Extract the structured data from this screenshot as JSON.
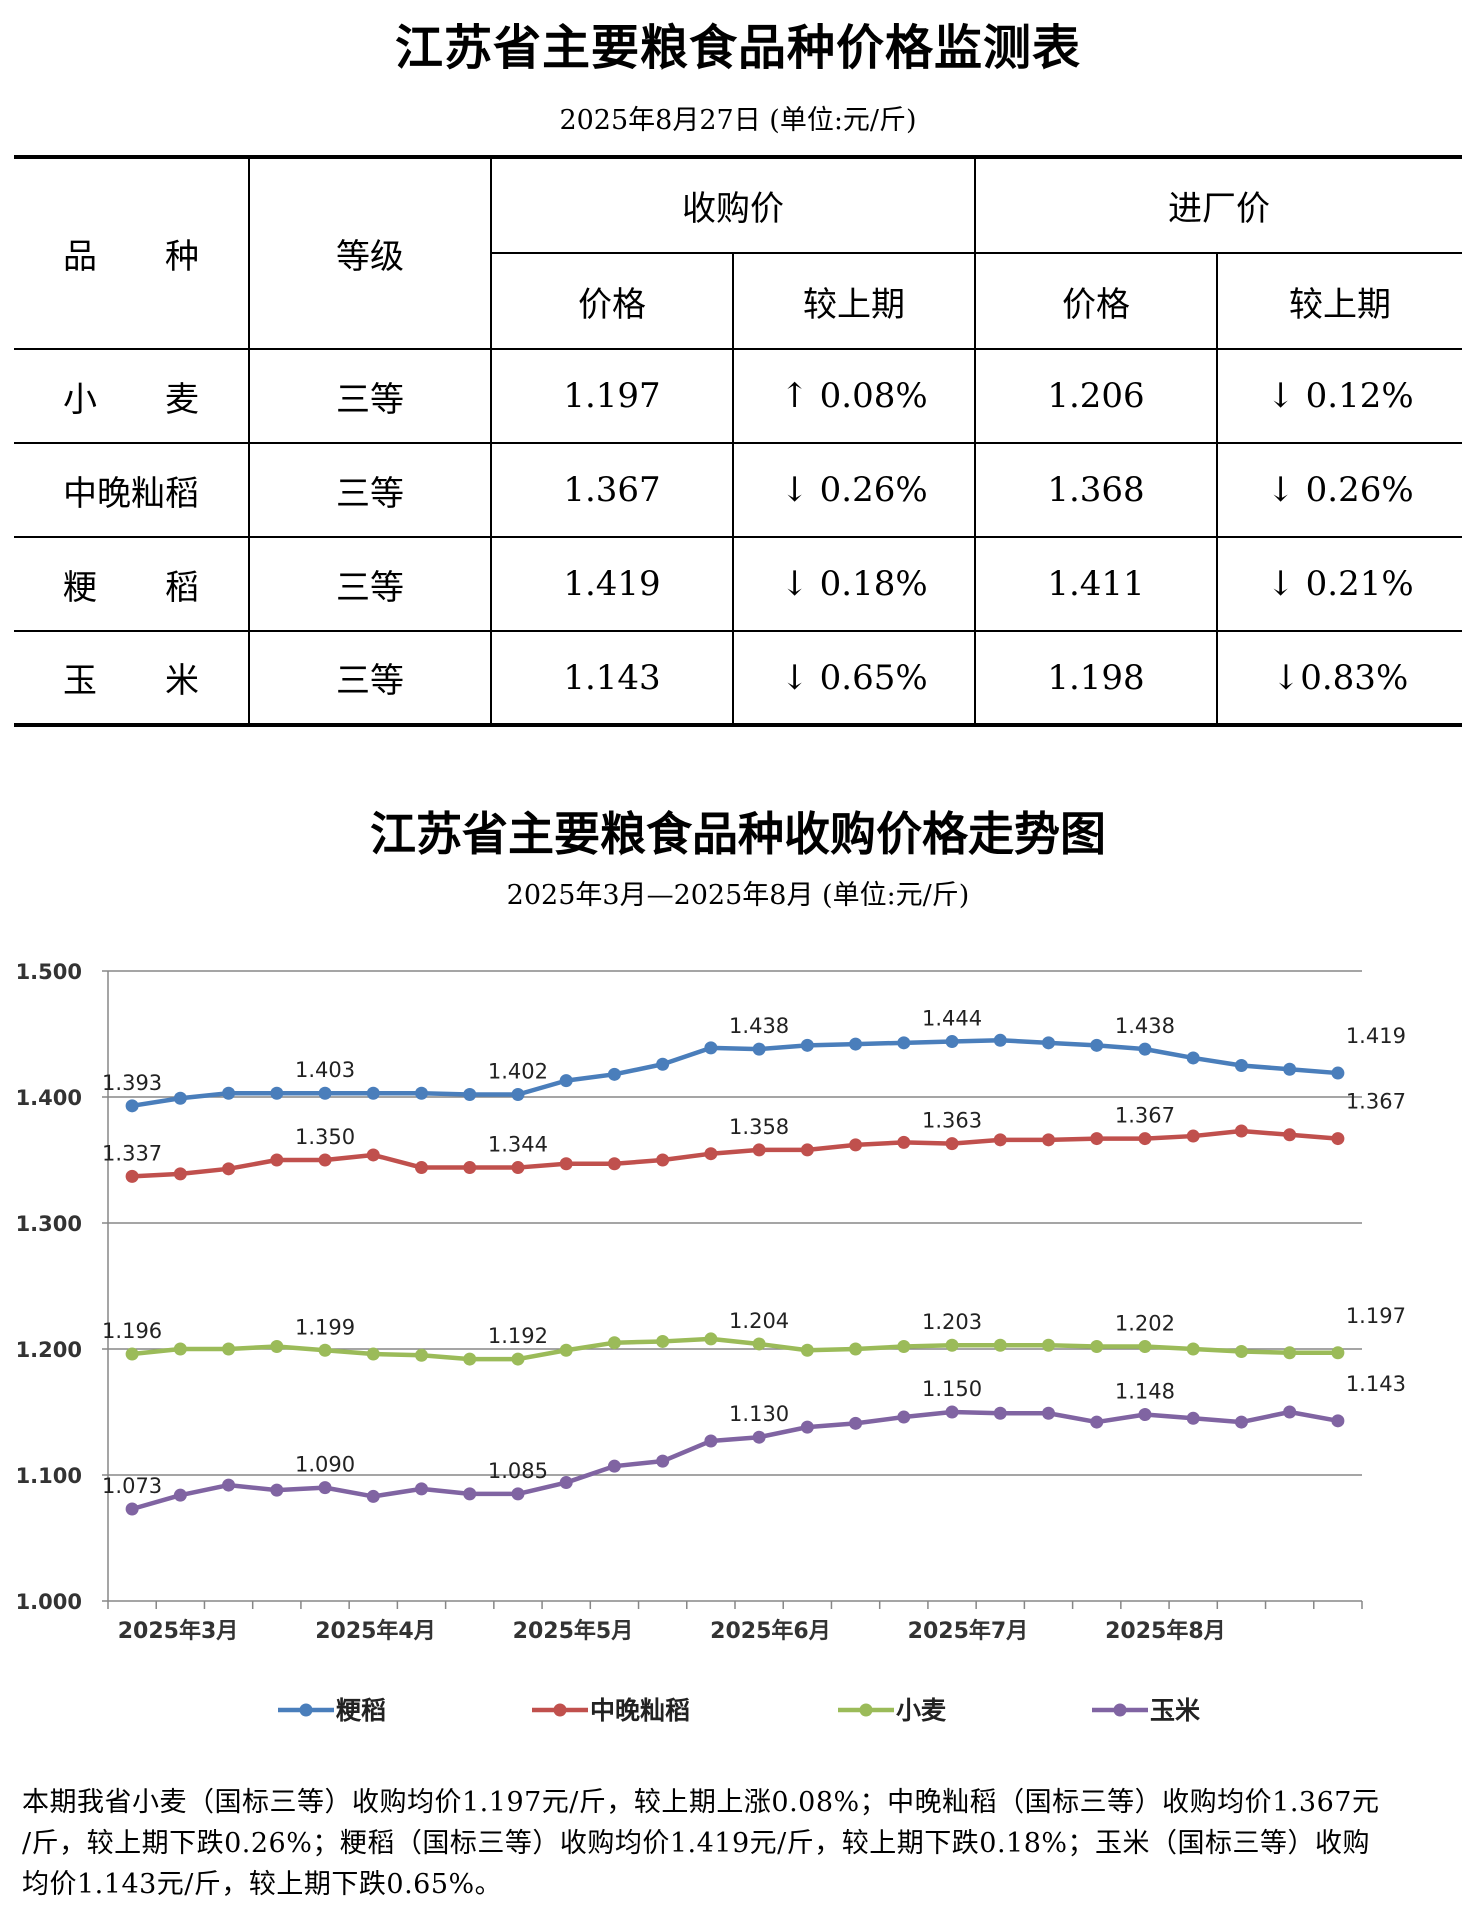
{
  "table": {
    "title": "江苏省主要粮食品种价格监测表",
    "subtitle": "2025年8月27日  (单位:元/斤)",
    "headers": {
      "variety": "品　　种",
      "grade": "等级",
      "purchase": "收购价",
      "factory": "进厂价",
      "price": "价格",
      "change": "较上期"
    },
    "rows": [
      {
        "variety": "小　　麦",
        "grade": "三等",
        "purchase_price": "1.197",
        "purchase_change": "↑ 0.08%",
        "factory_price": "1.206",
        "factory_change": "↓ 0.12%"
      },
      {
        "variety": "中晚籼稻",
        "grade": "三等",
        "purchase_price": "1.367",
        "purchase_change": "↓ 0.26%",
        "factory_price": "1.368",
        "factory_change": "↓ 0.26%"
      },
      {
        "variety": "粳　　稻",
        "grade": "三等",
        "purchase_price": "1.419",
        "purchase_change": "↓ 0.18%",
        "factory_price": "1.411",
        "factory_change": "↓ 0.21%"
      },
      {
        "variety": "玉　　米",
        "grade": "三等",
        "purchase_price": "1.143",
        "purchase_change": "↓ 0.65%",
        "factory_price": "1.198",
        "factory_change": "↓0.83%"
      }
    ]
  },
  "chart_data": {
    "type": "line",
    "title": "江苏省主要粮食品种收购价格走势图",
    "subtitle": "2025年3月—2025年8月  (单位:元/斤)",
    "ylim": [
      1.0,
      1.5
    ],
    "yticks": [
      "1.000",
      "1.100",
      "1.200",
      "1.300",
      "1.400",
      "1.500"
    ],
    "xtick_labels": [
      "2025年3月",
      "2025年4月",
      "2025年5月",
      "2025年6月",
      "2025年7月",
      "2025年8月"
    ],
    "grid": true,
    "legend_position": "bottom",
    "label_indices": [
      0,
      4,
      8,
      13,
      17,
      21,
      25
    ],
    "series": [
      {
        "name": "粳稻",
        "color": "#4a7ebb",
        "values": [
          1.393,
          1.399,
          1.403,
          1.403,
          1.403,
          1.403,
          1.403,
          1.402,
          1.402,
          1.413,
          1.418,
          1.426,
          1.439,
          1.438,
          1.441,
          1.442,
          1.443,
          1.444,
          1.445,
          1.443,
          1.441,
          1.438,
          1.431,
          1.425,
          1.422,
          1.419
        ],
        "labels": [
          "1.393",
          "1.403",
          "1.402",
          "1.438",
          "1.444",
          "1.438",
          "1.419"
        ]
      },
      {
        "name": "中晚籼稻",
        "color": "#c0504d",
        "values": [
          1.337,
          1.339,
          1.343,
          1.35,
          1.35,
          1.354,
          1.344,
          1.344,
          1.344,
          1.347,
          1.347,
          1.35,
          1.355,
          1.358,
          1.358,
          1.362,
          1.364,
          1.363,
          1.366,
          1.366,
          1.367,
          1.367,
          1.369,
          1.373,
          1.37,
          1.367
        ],
        "labels": [
          "1.337",
          "1.350",
          "1.344",
          "1.358",
          "1.363",
          "1.367",
          "1.367"
        ]
      },
      {
        "name": "小麦",
        "color": "#9bbb59",
        "values": [
          1.196,
          1.2,
          1.2,
          1.202,
          1.199,
          1.196,
          1.195,
          1.192,
          1.192,
          1.199,
          1.205,
          1.206,
          1.208,
          1.204,
          1.199,
          1.2,
          1.202,
          1.203,
          1.203,
          1.203,
          1.202,
          1.202,
          1.2,
          1.198,
          1.197,
          1.197
        ],
        "labels": [
          "1.196",
          "1.199",
          "1.192",
          "1.204",
          "1.203",
          "1.202",
          "1.197"
        ]
      },
      {
        "name": "玉米",
        "color": "#8064a2",
        "values": [
          1.073,
          1.084,
          1.092,
          1.088,
          1.09,
          1.083,
          1.089,
          1.085,
          1.085,
          1.094,
          1.107,
          1.111,
          1.127,
          1.13,
          1.138,
          1.141,
          1.146,
          1.15,
          1.149,
          1.149,
          1.142,
          1.148,
          1.145,
          1.142,
          1.15,
          1.143
        ],
        "labels": [
          "1.073",
          "1.090",
          "1.085",
          "1.130",
          "1.150",
          "1.148",
          "1.143"
        ]
      }
    ]
  },
  "footer": {
    "line1": "本期我省小麦（国标三等）收购均价1.197元/斤，较上期上涨0.08%；中晚籼稻（国标三等）收购均价1.367元",
    "line2": "/斤，较上期下跌0.26%；粳稻（国标三等）收购均价1.419元/斤，较上期下跌0.18%；玉米（国标三等）收购",
    "line3": "均价1.143元/斤，较上期下跌0.65%。"
  }
}
